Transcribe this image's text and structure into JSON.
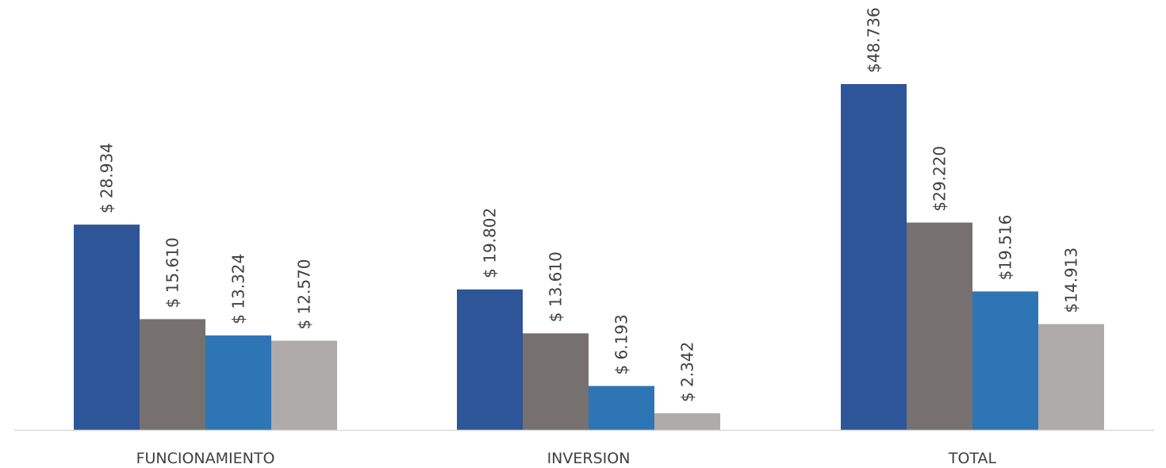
{
  "chart_data": {
    "type": "bar",
    "categories": [
      "FUNCIONAMIENTO",
      "INVERSION",
      "TOTAL"
    ],
    "series": [
      {
        "values": [
          28934,
          19802,
          48736
        ],
        "labels": [
          "$ 28.934",
          "$ 19.802",
          "$48.736"
        ],
        "color": "#2E5597"
      },
      {
        "values": [
          15610,
          13610,
          29220
        ],
        "labels": [
          "$ 15.610",
          "$ 13.610",
          "$29.220"
        ],
        "color": "#76716F"
      },
      {
        "values": [
          13324,
          6193,
          19516
        ],
        "labels": [
          "$ 13.324",
          "$ 6.193",
          "$19.516"
        ],
        "color": "#2E75B6"
      },
      {
        "values": [
          12570,
          2342,
          14913
        ],
        "labels": [
          "$ 12.570",
          "$ 2.342",
          "$14.913"
        ],
        "color": "#AEABAA"
      }
    ],
    "ylim": [
      0,
      48736
    ],
    "grid": false,
    "legend": "none",
    "axis_color": "#D9D9D9"
  }
}
